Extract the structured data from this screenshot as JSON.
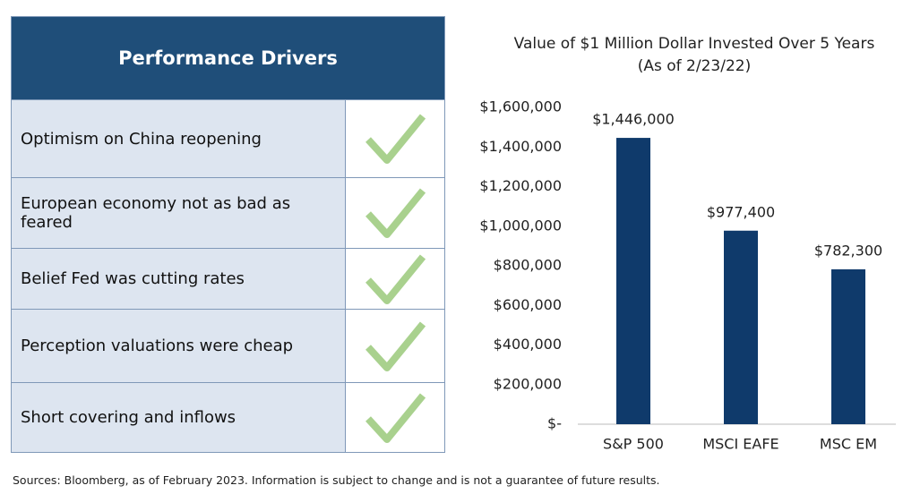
{
  "table": {
    "title": "Performance Drivers",
    "rows": [
      "Optimism on China reopening",
      "European economy not as bad as feared",
      "Belief Fed was cutting rates",
      "Perception valuations were cheap",
      "Short covering and inflows"
    ]
  },
  "chart_data": {
    "type": "bar",
    "title": "Value of $1 Million Dollar Invested Over 5 Years",
    "subtitle": "(As of 2/23/22)",
    "categories": [
      "S&P 500",
      "MSCI EAFE",
      "MSC EM"
    ],
    "values": [
      1446000,
      977400,
      782300
    ],
    "value_labels": [
      "$1,446,000",
      "$977,400",
      "$782,300"
    ],
    "color": "#0f3a6b",
    "ylim": [
      0,
      1600000
    ],
    "yticks": [
      {
        "value": 0,
        "label": "$-"
      },
      {
        "value": 200000,
        "label": "$200,000"
      },
      {
        "value": 400000,
        "label": "$400,000"
      },
      {
        "value": 600000,
        "label": "$600,000"
      },
      {
        "value": 800000,
        "label": "$800,000"
      },
      {
        "value": 1000000,
        "label": "$1,000,000"
      },
      {
        "value": 1200000,
        "label": "$1,200,000"
      },
      {
        "value": 1400000,
        "label": "$1,400,000"
      },
      {
        "value": 1600000,
        "label": "$1,600,000"
      }
    ],
    "grid": false
  },
  "footer": "Sources: Bloomberg, as of February 2023. Information is subject to change and is not a guarantee of future results."
}
